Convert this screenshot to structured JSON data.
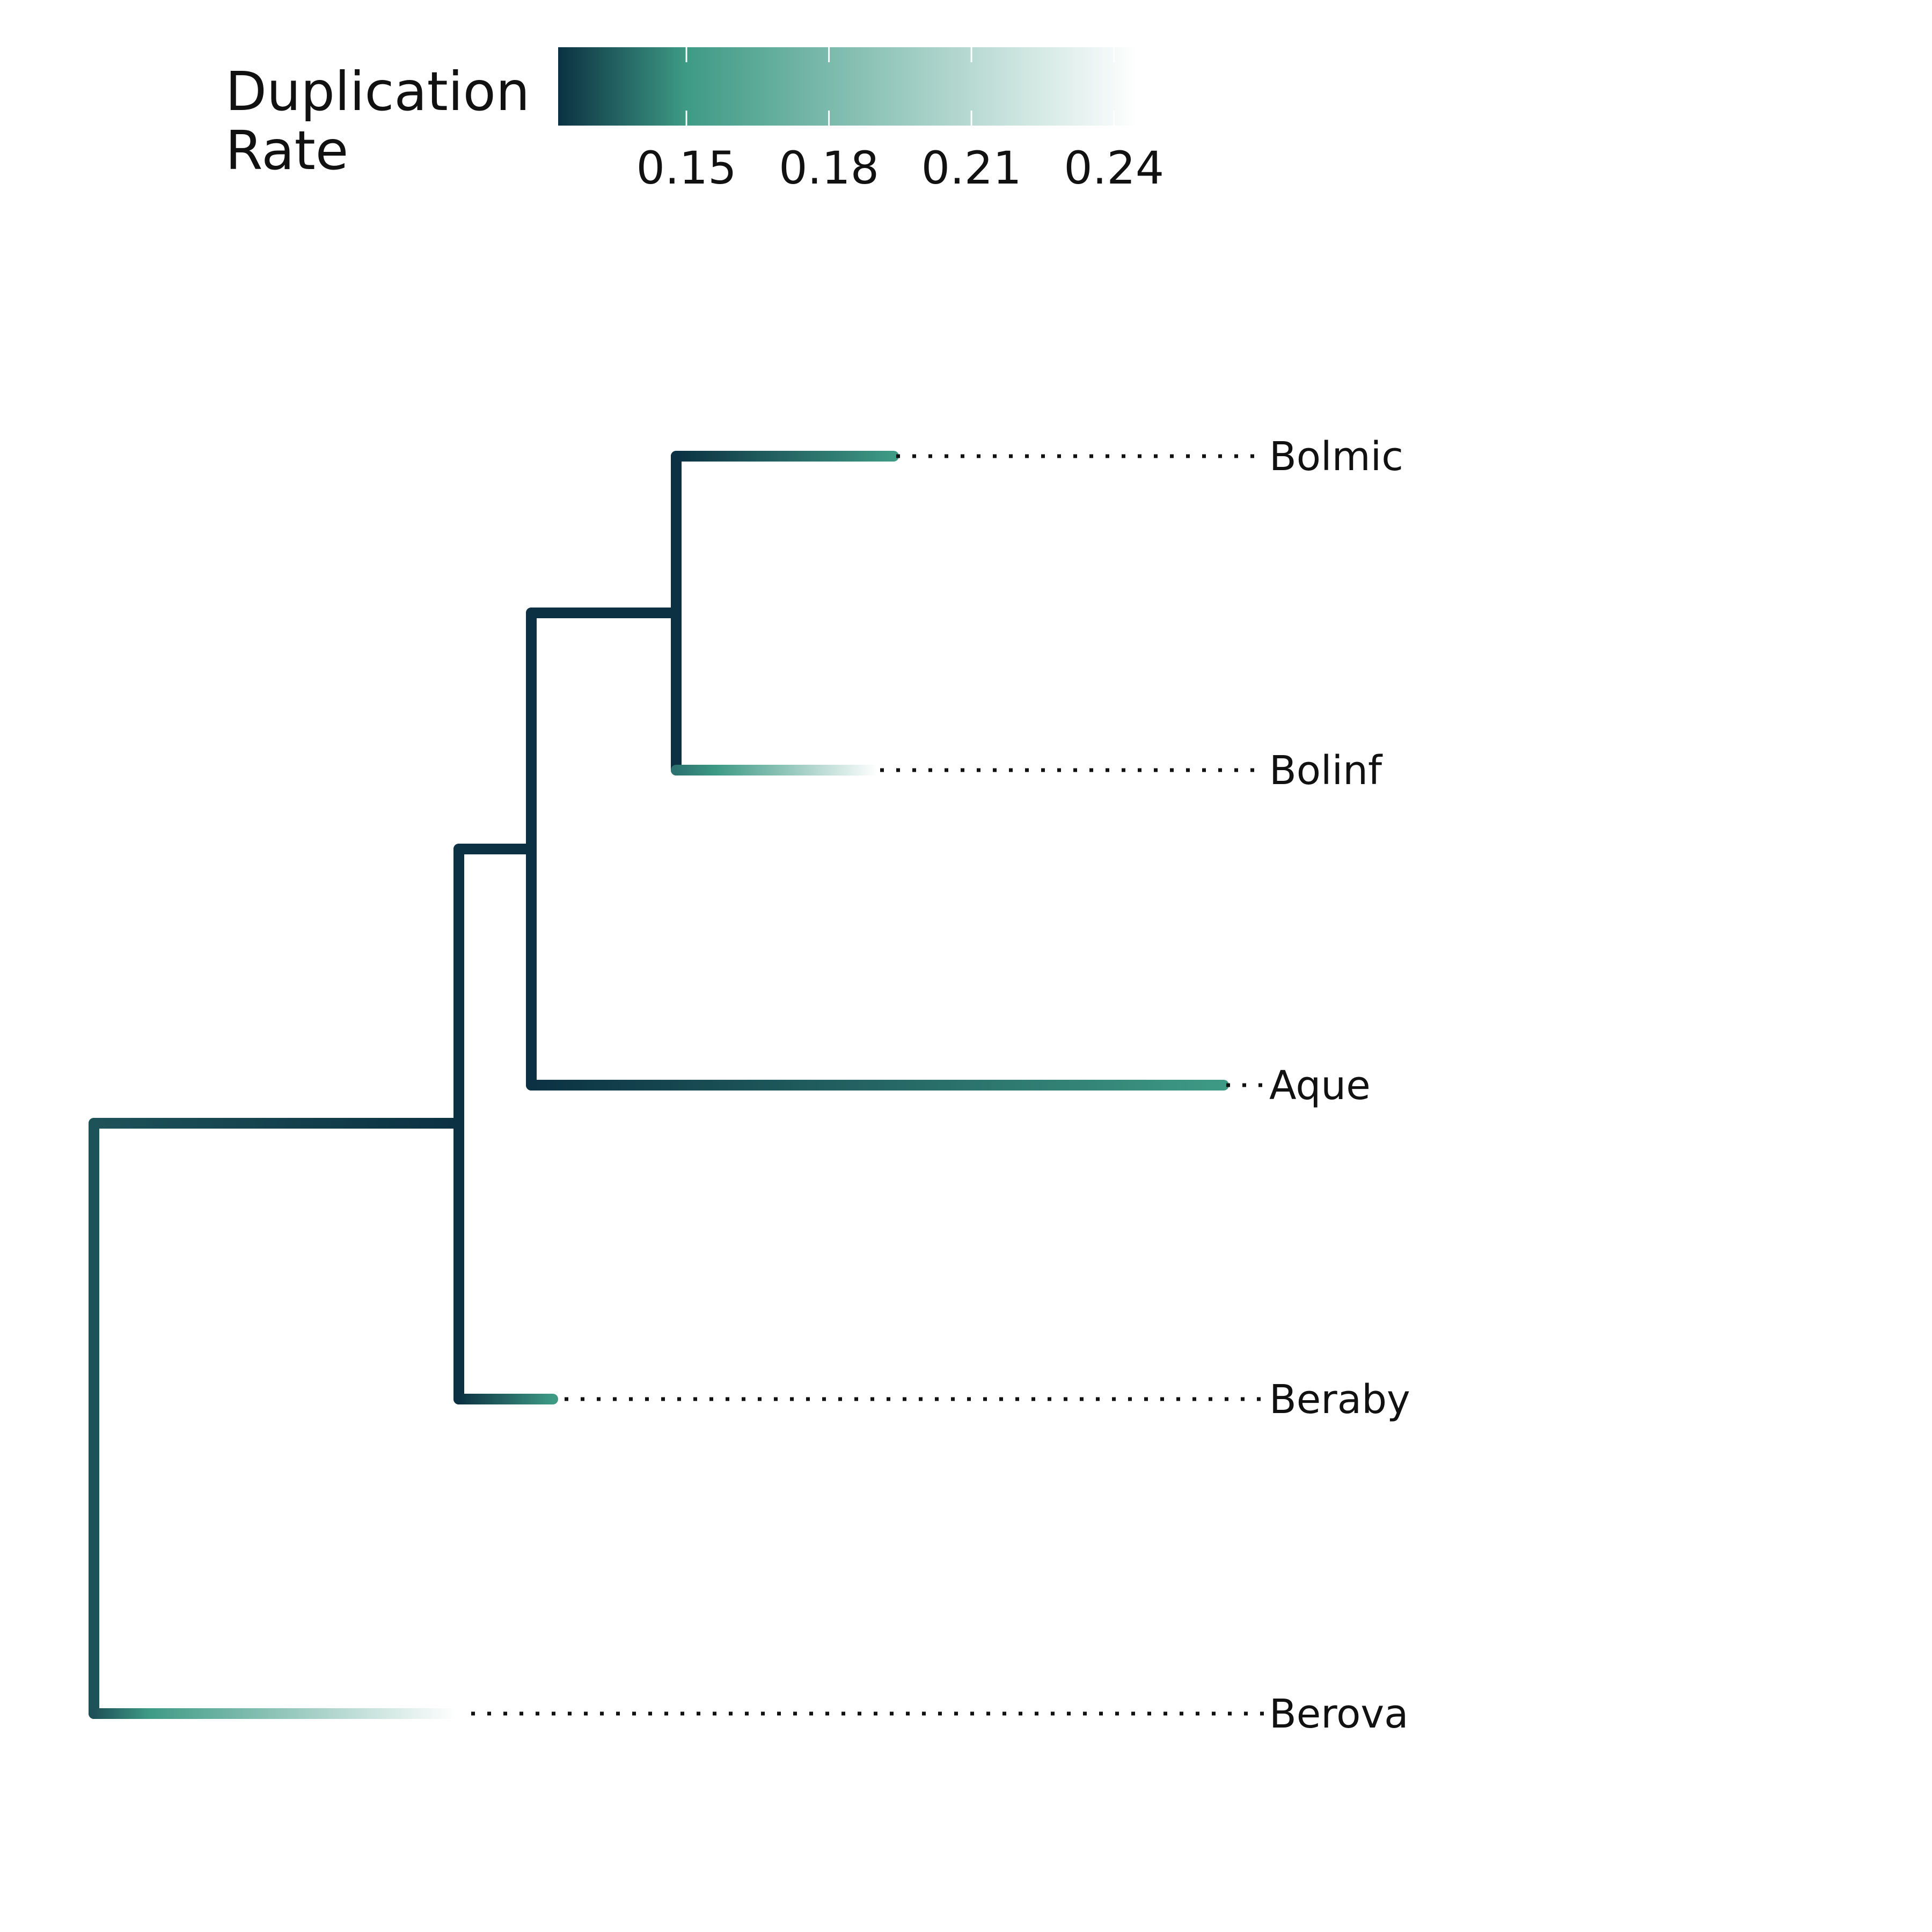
{
  "legend": {
    "title_line1": "Duplication",
    "title_line2": "Rate",
    "ticks": [
      0.15,
      0.18,
      0.21,
      0.24
    ],
    "tick_labels": [
      "0.15",
      "0.18",
      "0.21",
      "0.24"
    ],
    "range": [
      0.123,
      0.245
    ],
    "colors": [
      "#0b3142",
      "#3e9a85",
      "#ffffff"
    ]
  },
  "tree": {
    "tips": [
      {
        "key": "bolmic",
        "label": "Bolmic"
      },
      {
        "key": "bolinf",
        "label": "Bolinf"
      },
      {
        "key": "aque",
        "label": "Aque"
      },
      {
        "key": "beraby",
        "label": "Beraby"
      },
      {
        "key": "berova",
        "label": "Berova"
      }
    ]
  },
  "chart_data": {
    "type": "tree",
    "color_scale": {
      "title": "Duplication Rate",
      "ticks": [
        0.15,
        0.18,
        0.21,
        0.24
      ],
      "palette": [
        "#0b3142",
        "#3e9a85",
        "#ffffff"
      ]
    },
    "branches": [
      {
        "from": "root",
        "to": "n1",
        "rate": [
          0.138,
          0.126
        ]
      },
      {
        "from": "root",
        "to": "Berova",
        "rate": [
          0.138,
          0.245
        ]
      },
      {
        "from": "n1",
        "to": "n2",
        "rate": [
          0.125,
          0.125
        ]
      },
      {
        "from": "n1",
        "to": "Beraby",
        "rate": [
          0.125,
          0.15
        ]
      },
      {
        "from": "n2",
        "to": "n3",
        "rate": [
          0.125,
          0.125
        ]
      },
      {
        "from": "n2",
        "to": "Aque",
        "rate": [
          0.125,
          0.15
        ]
      },
      {
        "from": "n3",
        "to": "Bolmic",
        "rate": [
          0.125,
          0.15
        ]
      },
      {
        "from": "n3",
        "to": "Bolinf",
        "rate": [
          0.145,
          0.245
        ]
      }
    ]
  }
}
